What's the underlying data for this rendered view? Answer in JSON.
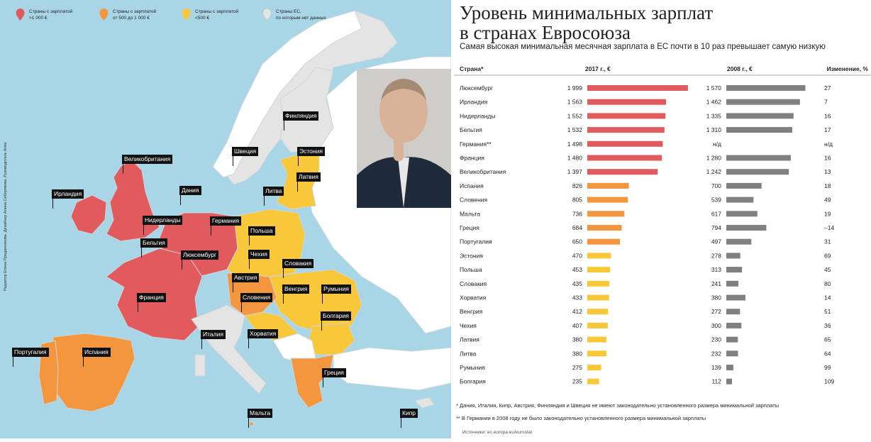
{
  "map": {
    "legend": [
      {
        "text": "Страны с зарплатой\n>1 000 €",
        "color": "#e05a5e"
      },
      {
        "text": "Страны с зарплатой\nот 500 до 1 000 €",
        "color": "#f3963e"
      },
      {
        "text": "Страны с зарплатой\n<500 €",
        "color": "#f9c83a"
      },
      {
        "text": "Страны ЕС,\nпо которым нет данных",
        "color": "#e4e4e4"
      }
    ],
    "credits": "Редактор Елена Приданникова. Дизайнер Алина Сибирякова. Руководитель Александр Вердиянц. Арт-директор Антон Степанов",
    "labels": [
      "Финляндия",
      "Швеция",
      "Эстония",
      "Великобритания",
      "Латвия",
      "Ирландия",
      "Дания",
      "Литва",
      "Нидерланды",
      "Германия",
      "Польша",
      "Бельгия",
      "Люксембург",
      "Чехия",
      "Словакия",
      "Австрия",
      "Франция",
      "Словения",
      "Венгрия",
      "Румыния",
      "Болгария",
      "Хорватия",
      "Италия",
      "Португалия",
      "Испания",
      "Греция",
      "Мальта",
      "Кипр"
    ],
    "colors": {
      "sea": "#a9d6e6",
      "land": "#ffffff",
      "border": "#d0dde3",
      "top_high": "#e05a5e",
      "mid": "#f3963e",
      "low": "#f9c83a",
      "nodata": "#e4e4e4"
    }
  },
  "header": {
    "title_line1": "Уровень минимальных зарплат",
    "title_line2": "в странах Евросоюза",
    "subtitle": "Самая высокая минимальная месячная зарплата в ЕС почти в 10 раз превышает самую низкую"
  },
  "chart_data": {
    "type": "table",
    "columns": [
      "Страна*",
      "2017 г., €",
      "2008 г., €",
      "Изменение, %"
    ],
    "rows": [
      {
        "country": "Люксембург",
        "v2017": 1999,
        "v2017_label": "1 999",
        "v2008": 1570,
        "v2008_label": "1 570",
        "change": "27",
        "group": "high"
      },
      {
        "country": "Ирландия",
        "v2017": 1563,
        "v2017_label": "1 563",
        "v2008": 1462,
        "v2008_label": "1 462",
        "change": "7",
        "group": "high"
      },
      {
        "country": "Нидерланды",
        "v2017": 1552,
        "v2017_label": "1 552",
        "v2008": 1335,
        "v2008_label": "1 335",
        "change": "16",
        "group": "high"
      },
      {
        "country": "Бельгия",
        "v2017": 1532,
        "v2017_label": "1 532",
        "v2008": 1310,
        "v2008_label": "1 310",
        "change": "17",
        "group": "high"
      },
      {
        "country": "Германия**",
        "v2017": 1498,
        "v2017_label": "1 498",
        "v2008": null,
        "v2008_label": "н/д",
        "change": "н/д",
        "group": "high"
      },
      {
        "country": "Франция",
        "v2017": 1480,
        "v2017_label": "1 480",
        "v2008": 1280,
        "v2008_label": "1 280",
        "change": "16",
        "group": "high"
      },
      {
        "country": "Великобритания",
        "v2017": 1397,
        "v2017_label": "1 397",
        "v2008": 1242,
        "v2008_label": "1 242",
        "change": "13",
        "group": "high"
      },
      {
        "country": "Испания",
        "v2017": 826,
        "v2017_label": "826",
        "v2008": 700,
        "v2008_label": "700",
        "change": "18",
        "group": "mid"
      },
      {
        "country": "Словения",
        "v2017": 805,
        "v2017_label": "805",
        "v2008": 539,
        "v2008_label": "539",
        "change": "49",
        "group": "mid"
      },
      {
        "country": "Мальта",
        "v2017": 736,
        "v2017_label": "736",
        "v2008": 617,
        "v2008_label": "617",
        "change": "19",
        "group": "mid"
      },
      {
        "country": "Греция",
        "v2017": 684,
        "v2017_label": "684",
        "v2008": 794,
        "v2008_label": "794",
        "change": "–14",
        "group": "mid"
      },
      {
        "country": "Португалия",
        "v2017": 650,
        "v2017_label": "650",
        "v2008": 497,
        "v2008_label": "497",
        "change": "31",
        "group": "mid"
      },
      {
        "country": "Эстония",
        "v2017": 470,
        "v2017_label": "470",
        "v2008": 278,
        "v2008_label": "278",
        "change": "69",
        "group": "low"
      },
      {
        "country": "Польша",
        "v2017": 453,
        "v2017_label": "453",
        "v2008": 313,
        "v2008_label": "313",
        "change": "45",
        "group": "low"
      },
      {
        "country": "Словакия",
        "v2017": 435,
        "v2017_label": "435",
        "v2008": 241,
        "v2008_label": "241",
        "change": "80",
        "group": "low"
      },
      {
        "country": "Хорватия",
        "v2017": 433,
        "v2017_label": "433",
        "v2008": 380,
        "v2008_label": "380",
        "change": "14",
        "group": "low"
      },
      {
        "country": "Венгрия",
        "v2017": 412,
        "v2017_label": "412",
        "v2008": 272,
        "v2008_label": "272",
        "change": "51",
        "group": "low"
      },
      {
        "country": "Чехия",
        "v2017": 407,
        "v2017_label": "407",
        "v2008": 300,
        "v2008_label": "300",
        "change": "36",
        "group": "low"
      },
      {
        "country": "Латвия",
        "v2017": 380,
        "v2017_label": "380",
        "v2008": 230,
        "v2008_label": "230",
        "change": "65",
        "group": "low"
      },
      {
        "country": "Литва",
        "v2017": 380,
        "v2017_label": "380",
        "v2008": 232,
        "v2008_label": "232",
        "change": "64",
        "group": "low"
      },
      {
        "country": "Румыния",
        "v2017": 275,
        "v2017_label": "275",
        "v2008": 139,
        "v2008_label": "139",
        "change": "99",
        "group": "low"
      },
      {
        "country": "Болгария",
        "v2017": 235,
        "v2017_label": "235",
        "v2008": 112,
        "v2008_label": "112",
        "change": "109",
        "group": "low"
      }
    ],
    "colors": {
      "high": "#e05a5e",
      "mid": "#f3963e",
      "low": "#f9c83a",
      "y2008": "#808080"
    },
    "xlim": [
      0,
      2000
    ]
  },
  "footnotes": {
    "note1": "* Дания, Италия, Кипр, Австрия, Финляндия и Швеция не имеют законодательно установленного размера минимальной зарплаты",
    "note2": "** В Германии в 2008 году не было законодательно установленного размера минимальной зарплаты",
    "source": "Источники: ec.europa.eu/eurostat"
  }
}
